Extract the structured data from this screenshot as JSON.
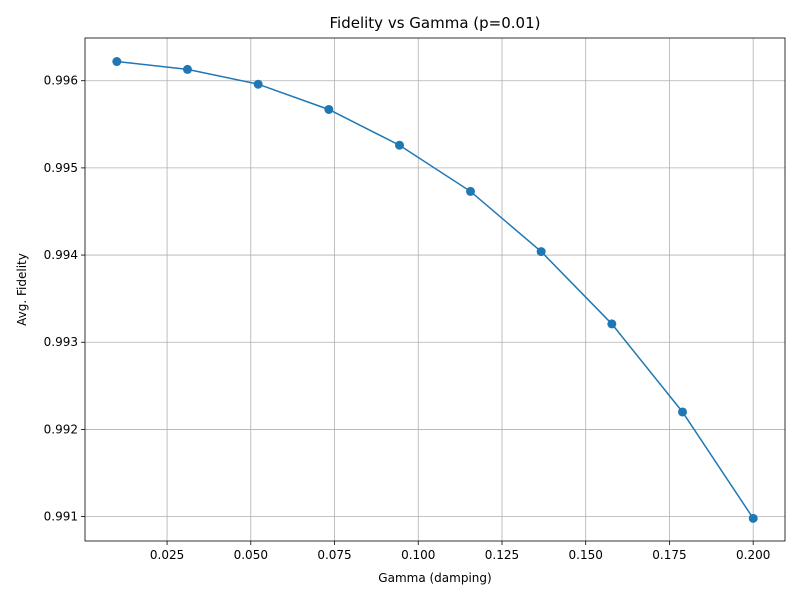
{
  "chart_data": {
    "type": "line",
    "title": "Fidelity vs Gamma (p=0.01)",
    "xlabel": "Gamma (damping)",
    "ylabel": "Avg. Fidelity",
    "xlim": [
      0.0005,
      0.2095
    ],
    "ylim": [
      0.99072,
      0.99649
    ],
    "xticks": [
      0.025,
      0.05,
      0.075,
      0.1,
      0.125,
      0.15,
      0.175,
      0.2
    ],
    "xtick_labels": [
      "0.025",
      "0.050",
      "0.075",
      "0.100",
      "0.125",
      "0.150",
      "0.175",
      "0.200"
    ],
    "yticks": [
      0.991,
      0.992,
      0.993,
      0.994,
      0.995,
      0.996
    ],
    "ytick_labels": [
      "0.991",
      "0.992",
      "0.993",
      "0.994",
      "0.995",
      "0.996"
    ],
    "grid": true,
    "color": "#1f77b4",
    "series": [
      {
        "x": [
          0.01,
          0.0311,
          0.0522,
          0.0733,
          0.0944,
          0.1156,
          0.1367,
          0.1578,
          0.1789,
          0.2
        ],
        "y": [
          0.99622,
          0.99613,
          0.99596,
          0.99567,
          0.99526,
          0.99473,
          0.99404,
          0.99321,
          0.9922,
          0.99098
        ]
      }
    ]
  }
}
